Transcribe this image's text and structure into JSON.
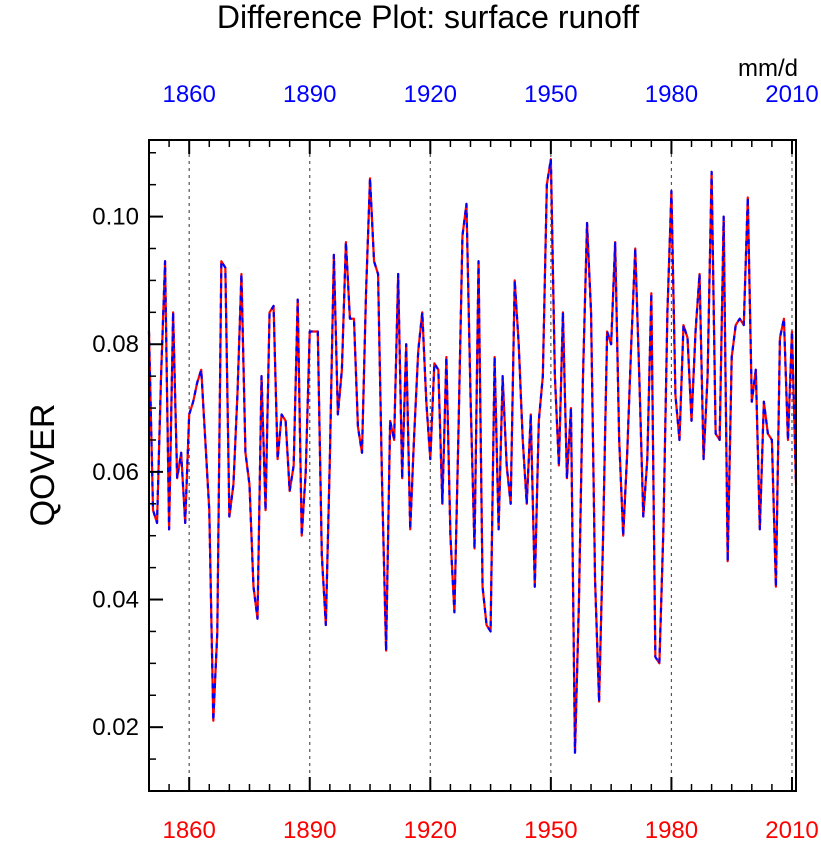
{
  "chart_data": {
    "type": "line",
    "title": "Difference Plot: surface runoff",
    "units": "mm/d",
    "ylabel": "QOVER",
    "xlabel": "",
    "xlim": [
      1850,
      2011
    ],
    "ylim": [
      0.01,
      0.112
    ],
    "x_ticks": [
      "1860",
      "1890",
      "1920",
      "1950",
      "1980",
      "2010"
    ],
    "x_tick_values": [
      1860,
      1890,
      1920,
      1950,
      1980,
      2010
    ],
    "y_ticks": [
      "0.02",
      "0.04",
      "0.06",
      "0.08",
      "0.10"
    ],
    "y_tick_values": [
      0.02,
      0.04,
      0.06,
      0.08,
      0.1
    ],
    "y_minor_step": 0.005,
    "x_minor_step": 5,
    "grid": "vertical dashed at major x ticks",
    "bottom_axis_color": "#ff0000",
    "top_axis_color": "#0000ff",
    "series": [
      {
        "name": "red solid",
        "color": "#ff0000",
        "dash": "solid",
        "x": [
          1850,
          1851,
          1852,
          1853,
          1854,
          1855,
          1856,
          1857,
          1858,
          1859,
          1860,
          1861,
          1862,
          1863,
          1864,
          1865,
          1866,
          1867,
          1868,
          1869,
          1870,
          1871,
          1872,
          1873,
          1874,
          1875,
          1876,
          1877,
          1878,
          1879,
          1880,
          1881,
          1882,
          1883,
          1884,
          1885,
          1886,
          1887,
          1888,
          1889,
          1890,
          1891,
          1892,
          1893,
          1894,
          1895,
          1896,
          1897,
          1898,
          1899,
          1900,
          1901,
          1902,
          1903,
          1904,
          1905,
          1906,
          1907,
          1908,
          1909,
          1910,
          1911,
          1912,
          1913,
          1914,
          1915,
          1916,
          1917,
          1918,
          1919,
          1920,
          1921,
          1922,
          1923,
          1924,
          1925,
          1926,
          1927,
          1928,
          1929,
          1930,
          1931,
          1932,
          1933,
          1934,
          1935,
          1936,
          1937,
          1938,
          1939,
          1940,
          1941,
          1942,
          1943,
          1944,
          1945,
          1946,
          1947,
          1948,
          1949,
          1950,
          1951,
          1952,
          1953,
          1954,
          1955,
          1956,
          1957,
          1958,
          1959,
          1960,
          1961,
          1962,
          1963,
          1964,
          1965,
          1966,
          1967,
          1968,
          1969,
          1970,
          1971,
          1972,
          1973,
          1974,
          1975,
          1976,
          1977,
          1978,
          1979,
          1980,
          1981,
          1982,
          1983,
          1984,
          1985,
          1986,
          1987,
          1988,
          1989,
          1990,
          1991,
          1992,
          1993,
          1994,
          1995,
          1996,
          1997,
          1998,
          1999,
          2000,
          2001,
          2002,
          2003,
          2004,
          2005,
          2006,
          2007,
          2008,
          2009,
          2010,
          2011
        ],
        "values": [
          0.082,
          0.054,
          0.052,
          0.075,
          0.093,
          0.051,
          0.085,
          0.059,
          0.063,
          0.052,
          0.069,
          0.071,
          0.074,
          0.076,
          0.065,
          0.054,
          0.021,
          0.035,
          0.093,
          0.092,
          0.053,
          0.058,
          0.072,
          0.091,
          0.063,
          0.058,
          0.042,
          0.037,
          0.075,
          0.054,
          0.085,
          0.086,
          0.062,
          0.069,
          0.068,
          0.057,
          0.061,
          0.087,
          0.05,
          0.06,
          0.082,
          0.082,
          0.082,
          0.047,
          0.036,
          0.062,
          0.094,
          0.069,
          0.076,
          0.096,
          0.084,
          0.084,
          0.067,
          0.063,
          0.088,
          0.106,
          0.093,
          0.091,
          0.058,
          0.032,
          0.068,
          0.065,
          0.091,
          0.059,
          0.08,
          0.051,
          0.066,
          0.079,
          0.085,
          0.071,
          0.062,
          0.077,
          0.076,
          0.055,
          0.078,
          0.05,
          0.038,
          0.066,
          0.097,
          0.102,
          0.072,
          0.048,
          0.093,
          0.042,
          0.036,
          0.035,
          0.078,
          0.051,
          0.075,
          0.061,
          0.055,
          0.09,
          0.08,
          0.065,
          0.055,
          0.069,
          0.042,
          0.068,
          0.075,
          0.105,
          0.109,
          0.075,
          0.061,
          0.085,
          0.059,
          0.07,
          0.016,
          0.04,
          0.075,
          0.099,
          0.085,
          0.043,
          0.024,
          0.05,
          0.082,
          0.08,
          0.096,
          0.065,
          0.05,
          0.063,
          0.08,
          0.095,
          0.075,
          0.053,
          0.062,
          0.088,
          0.031,
          0.03,
          0.051,
          0.085,
          0.104,
          0.072,
          0.065,
          0.083,
          0.081,
          0.068,
          0.082,
          0.091,
          0.062,
          0.075,
          0.107,
          0.066,
          0.065,
          0.1,
          0.046,
          0.078,
          0.083,
          0.084,
          0.083,
          0.103,
          0.071,
          0.076,
          0.051,
          0.071,
          0.066,
          0.065,
          0.042,
          0.081,
          0.084,
          0.065,
          0.082,
          0.058
        ]
      },
      {
        "name": "blue dashed",
        "color": "#0000ff",
        "dash": "dashed",
        "x": [
          1850,
          1851,
          1852,
          1853,
          1854,
          1855,
          1856,
          1857,
          1858,
          1859,
          1860,
          1861,
          1862,
          1863,
          1864,
          1865,
          1866,
          1867,
          1868,
          1869,
          1870,
          1871,
          1872,
          1873,
          1874,
          1875,
          1876,
          1877,
          1878,
          1879,
          1880,
          1881,
          1882,
          1883,
          1884,
          1885,
          1886,
          1887,
          1888,
          1889,
          1890,
          1891,
          1892,
          1893,
          1894,
          1895,
          1896,
          1897,
          1898,
          1899,
          1900,
          1901,
          1902,
          1903,
          1904,
          1905,
          1906,
          1907,
          1908,
          1909,
          1910,
          1911,
          1912,
          1913,
          1914,
          1915,
          1916,
          1917,
          1918,
          1919,
          1920,
          1921,
          1922,
          1923,
          1924,
          1925,
          1926,
          1927,
          1928,
          1929,
          1930,
          1931,
          1932,
          1933,
          1934,
          1935,
          1936,
          1937,
          1938,
          1939,
          1940,
          1941,
          1942,
          1943,
          1944,
          1945,
          1946,
          1947,
          1948,
          1949,
          1950,
          1951,
          1952,
          1953,
          1954,
          1955,
          1956,
          1957,
          1958,
          1959,
          1960,
          1961,
          1962,
          1963,
          1964,
          1965,
          1966,
          1967,
          1968,
          1969,
          1970,
          1971,
          1972,
          1973,
          1974,
          1975,
          1976,
          1977,
          1978,
          1979,
          1980,
          1981,
          1982,
          1983,
          1984,
          1985,
          1986,
          1987,
          1988,
          1989,
          1990,
          1991,
          1992,
          1993,
          1994,
          1995,
          1996,
          1997,
          1998,
          1999,
          2000,
          2001,
          2002,
          2003,
          2004,
          2005,
          2006,
          2007,
          2008,
          2009,
          2010,
          2011
        ],
        "values": [
          0.082,
          0.054,
          0.052,
          0.075,
          0.093,
          0.051,
          0.085,
          0.059,
          0.063,
          0.052,
          0.069,
          0.071,
          0.074,
          0.076,
          0.065,
          0.054,
          0.021,
          0.035,
          0.093,
          0.092,
          0.053,
          0.058,
          0.072,
          0.091,
          0.063,
          0.058,
          0.042,
          0.037,
          0.075,
          0.054,
          0.085,
          0.086,
          0.062,
          0.069,
          0.068,
          0.057,
          0.061,
          0.087,
          0.05,
          0.06,
          0.082,
          0.082,
          0.082,
          0.047,
          0.036,
          0.062,
          0.094,
          0.069,
          0.076,
          0.096,
          0.084,
          0.084,
          0.067,
          0.063,
          0.088,
          0.106,
          0.093,
          0.091,
          0.058,
          0.032,
          0.068,
          0.065,
          0.091,
          0.059,
          0.08,
          0.051,
          0.066,
          0.079,
          0.085,
          0.071,
          0.062,
          0.077,
          0.076,
          0.055,
          0.078,
          0.05,
          0.038,
          0.066,
          0.097,
          0.102,
          0.072,
          0.048,
          0.093,
          0.042,
          0.036,
          0.035,
          0.078,
          0.051,
          0.075,
          0.061,
          0.055,
          0.09,
          0.08,
          0.065,
          0.055,
          0.069,
          0.042,
          0.068,
          0.075,
          0.105,
          0.109,
          0.075,
          0.061,
          0.085,
          0.059,
          0.07,
          0.016,
          0.04,
          0.075,
          0.099,
          0.085,
          0.043,
          0.024,
          0.05,
          0.082,
          0.08,
          0.096,
          0.065,
          0.05,
          0.063,
          0.08,
          0.095,
          0.075,
          0.053,
          0.062,
          0.088,
          0.031,
          0.03,
          0.051,
          0.085,
          0.104,
          0.072,
          0.065,
          0.083,
          0.081,
          0.068,
          0.082,
          0.091,
          0.062,
          0.075,
          0.107,
          0.066,
          0.065,
          0.1,
          0.046,
          0.078,
          0.083,
          0.084,
          0.083,
          0.103,
          0.071,
          0.076,
          0.051,
          0.071,
          0.066,
          0.065,
          0.042,
          0.081,
          0.084,
          0.065,
          0.082,
          0.058
        ]
      }
    ]
  }
}
